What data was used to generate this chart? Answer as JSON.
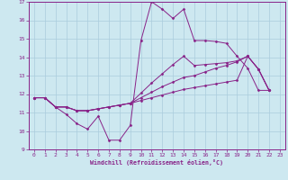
{
  "xlabel": "Windchill (Refroidissement éolien,°C)",
  "xlim": [
    -0.5,
    23.5
  ],
  "ylim": [
    9,
    17
  ],
  "xticks": [
    0,
    1,
    2,
    3,
    4,
    5,
    6,
    7,
    8,
    9,
    10,
    11,
    12,
    13,
    14,
    15,
    16,
    17,
    18,
    19,
    20,
    21,
    22,
    23
  ],
  "yticks": [
    9,
    10,
    11,
    12,
    13,
    14,
    15,
    16,
    17
  ],
  "bg_color": "#cde8f0",
  "line_color": "#882288",
  "grid_color": "#aaccdd",
  "lines": [
    {
      "x": [
        0,
        1,
        2,
        3,
        4,
        5,
        6,
        7,
        8,
        9,
        10,
        11,
        12,
        13,
        14,
        15,
        16,
        17,
        18,
        19,
        20,
        21,
        22
      ],
      "y": [
        11.8,
        11.8,
        11.3,
        10.9,
        10.4,
        10.1,
        10.8,
        9.5,
        9.5,
        10.3,
        14.9,
        17.0,
        16.6,
        16.1,
        16.6,
        14.9,
        14.9,
        14.85,
        14.75,
        14.05,
        13.4,
        12.2,
        12.2
      ]
    },
    {
      "x": [
        0,
        1,
        2,
        3,
        4,
        5,
        6,
        7,
        8,
        9,
        10,
        11,
        12,
        13,
        14,
        15,
        16,
        17,
        18,
        19,
        20,
        21,
        22
      ],
      "y": [
        11.8,
        11.8,
        11.3,
        11.3,
        11.1,
        11.1,
        11.2,
        11.3,
        11.4,
        11.5,
        11.65,
        11.8,
        11.95,
        12.1,
        12.25,
        12.35,
        12.45,
        12.55,
        12.65,
        12.75,
        14.05,
        13.35,
        12.2
      ]
    },
    {
      "x": [
        0,
        1,
        2,
        3,
        4,
        5,
        6,
        7,
        8,
        9,
        10,
        11,
        12,
        13,
        14,
        15,
        16,
        17,
        18,
        19,
        20,
        21,
        22
      ],
      "y": [
        11.8,
        11.8,
        11.3,
        11.3,
        11.1,
        11.1,
        11.2,
        11.3,
        11.4,
        11.5,
        11.8,
        12.1,
        12.4,
        12.65,
        12.9,
        13.0,
        13.2,
        13.4,
        13.55,
        13.75,
        14.05,
        13.35,
        12.2
      ]
    },
    {
      "x": [
        0,
        1,
        2,
        3,
        4,
        5,
        6,
        7,
        8,
        9,
        10,
        11,
        12,
        13,
        14,
        15,
        16,
        17,
        18,
        19,
        20,
        21,
        22
      ],
      "y": [
        11.8,
        11.8,
        11.3,
        11.3,
        11.1,
        11.1,
        11.2,
        11.3,
        11.4,
        11.5,
        12.05,
        12.6,
        13.1,
        13.6,
        14.05,
        13.55,
        13.6,
        13.65,
        13.7,
        13.8,
        14.05,
        13.35,
        12.2
      ]
    }
  ]
}
